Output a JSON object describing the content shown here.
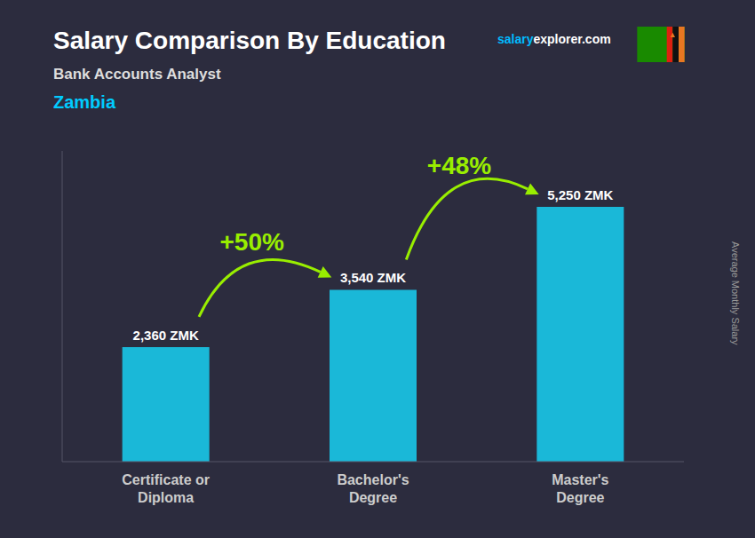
{
  "chart_data": {
    "type": "bar",
    "title": "Salary Comparison By Education",
    "subtitle": "Bank Accounts Analyst",
    "country": "Zambia",
    "watermark": [
      "salary",
      "explorer.com"
    ],
    "ylabel": "Average Monthly Salary",
    "categories": [
      "Certificate or\nDiploma",
      "Bachelor's\nDegree",
      "Master's\nDegree"
    ],
    "values": [
      2360,
      3540,
      5250
    ],
    "value_labels": [
      "2,360 ZMK",
      "3,540 ZMK",
      "5,250 ZMK"
    ],
    "data_labels": true,
    "annotations": [
      "+50%",
      "+48%"
    ],
    "color": "#1ab8d8",
    "ylim": [
      0,
      6400
    ],
    "yticks": [],
    "tick_labels": "x",
    "grid": false
  }
}
